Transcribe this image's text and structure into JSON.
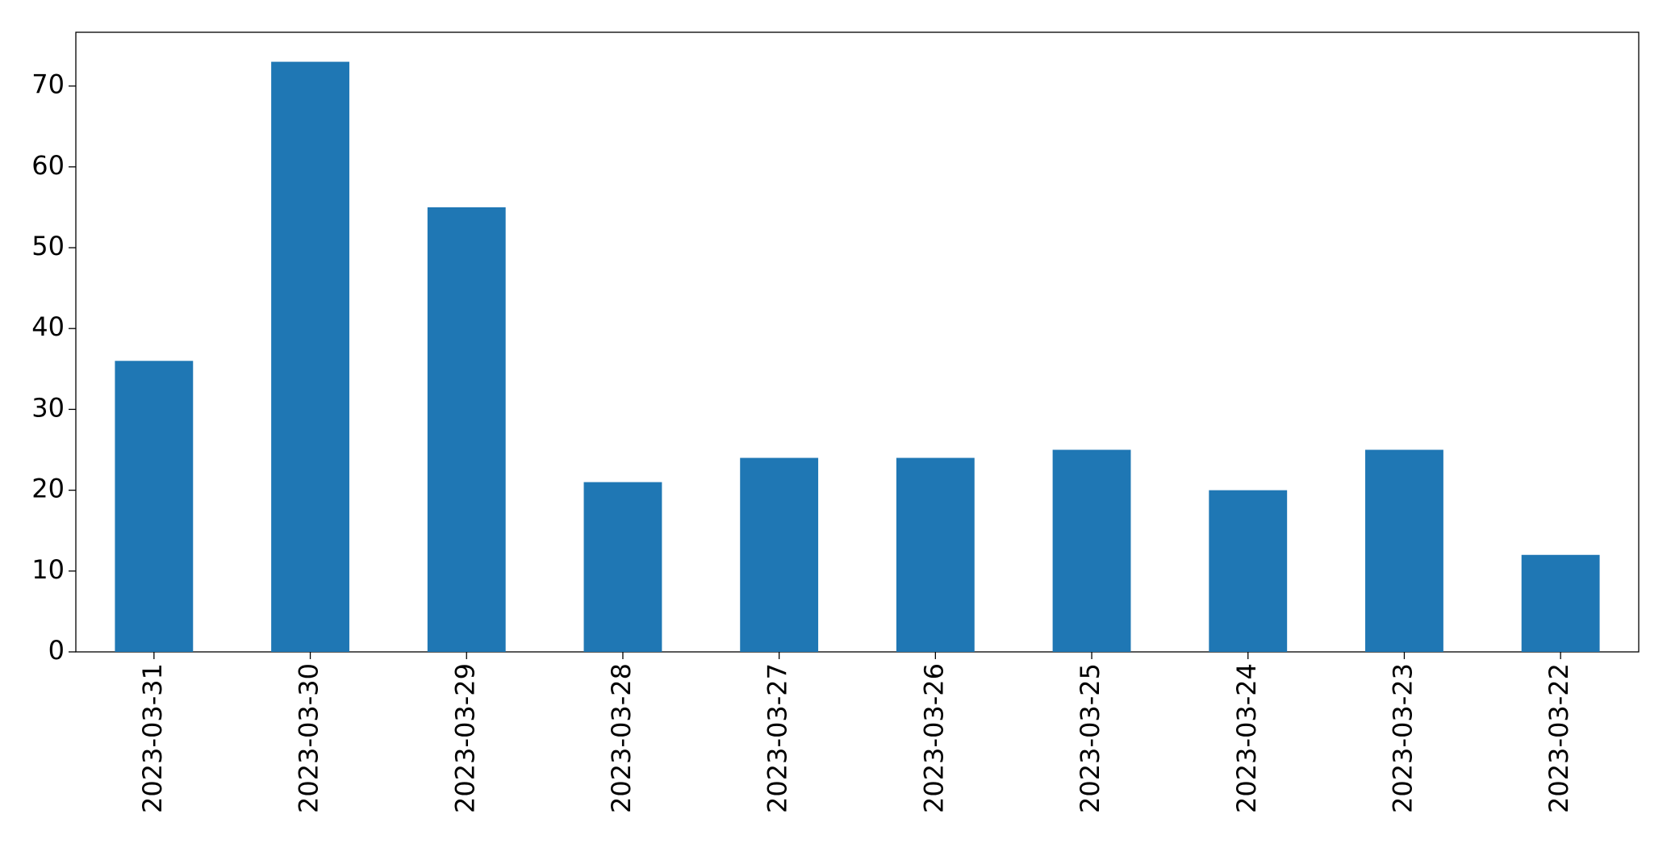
{
  "chart_data": {
    "type": "bar",
    "categories": [
      "2023-03-31",
      "2023-03-30",
      "2023-03-29",
      "2023-03-28",
      "2023-03-27",
      "2023-03-26",
      "2023-03-25",
      "2023-03-24",
      "2023-03-23",
      "2023-03-22"
    ],
    "values": [
      36,
      73,
      55,
      21,
      24,
      24,
      25,
      20,
      25,
      12
    ],
    "color": "#1f77b4",
    "ylim": [
      0,
      76.65
    ],
    "yticks": [
      0,
      10,
      20,
      30,
      40,
      50,
      60,
      70
    ],
    "grid": false
  }
}
